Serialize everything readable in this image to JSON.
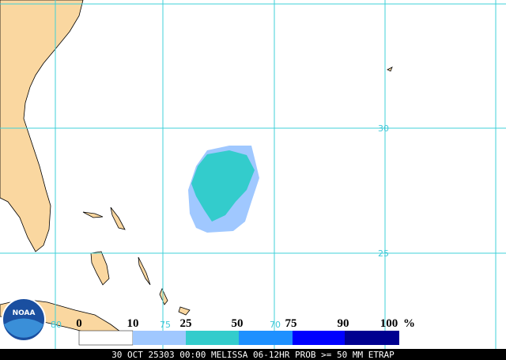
{
  "map": {
    "lat_labels": [
      "30",
      "25"
    ],
    "lon_labels": [
      "80",
      "75",
      "70"
    ],
    "logo": "NOAA",
    "legend": {
      "labels": [
        "0",
        "10",
        "25",
        "50",
        "75",
        "90",
        "100"
      ],
      "unit": "%"
    },
    "footer": "30 OCT 25303 00:00 MELISSA 06-12HR PROB >= 50 MM ETRAP"
  }
}
